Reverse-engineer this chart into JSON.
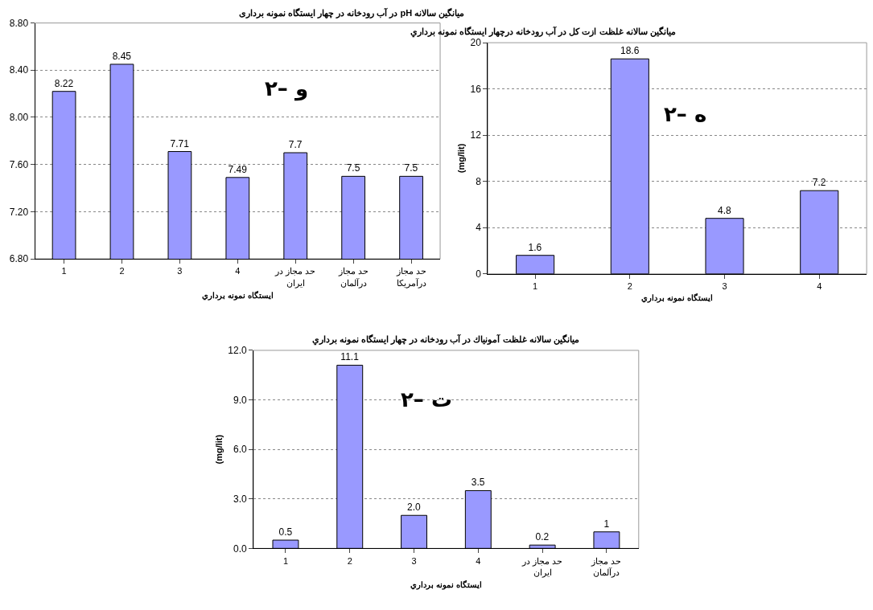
{
  "chart_data": [
    {
      "type": "bar",
      "title": "میانگین سالانه pH در آب رودخانه در چهار ایستگاه نمونه برداری",
      "xlabel": "ايستگاه نمونه برداري",
      "categories": [
        "1",
        "2",
        "3",
        "4",
        "حد مجاز در\nایران",
        "حد مجاز\nدرآلمان",
        "حد مجاز\nدرآمریکا"
      ],
      "values": [
        8.22,
        8.45,
        7.71,
        7.49,
        7.7,
        7.5,
        7.5
      ],
      "color": "#9999ff",
      "ylim": [
        6.8,
        8.8
      ],
      "yticks": [
        {
          "value": 6.8,
          "label": "6.80"
        },
        {
          "value": 7.2,
          "label": "7.20"
        },
        {
          "value": 7.6,
          "label": "7.60"
        },
        {
          "value": 8.0,
          "label": "8.00"
        },
        {
          "value": 8.4,
          "label": "8.40"
        },
        {
          "value": 8.8,
          "label": "8.80"
        }
      ],
      "grid": "y",
      "data_labels": true,
      "annotations": [
        "۲– و"
      ]
    },
    {
      "type": "bar",
      "title": "ميانگين سالانه غلظت ازت كل در آب رودخانه درچهار ايستگاه نمونه برداري",
      "xlabel": "ايستگاه نمونه برداري",
      "ylabel": "(mg/lit)",
      "categories": [
        "1",
        "2",
        "3",
        "4"
      ],
      "values": [
        1.6,
        18.6,
        4.8,
        7.2
      ],
      "color": "#9999ff",
      "ylim": [
        0,
        20
      ],
      "yticks": [
        0,
        4,
        8,
        12,
        16,
        20
      ],
      "grid": "y",
      "data_labels": true,
      "annotations": [
        "۲– ه"
      ]
    },
    {
      "type": "bar",
      "title": "ميانگين سالانه غلظت آمونياك در آب رودخانه در چهار ايستگاه نمونه برداري",
      "xlabel": "ايستگاه نمونه برداري",
      "ylabel": "(mg/lit)",
      "categories": [
        "1",
        "2",
        "3",
        "4",
        "حد مجاز در\nایران",
        "حد مجاز\nدرآلمان"
      ],
      "values": [
        0.5,
        11.1,
        2.0,
        3.5,
        0.2,
        1
      ],
      "value_labels": [
        "0.5",
        "11.1",
        "2.0",
        "3.5",
        "0.2",
        "1"
      ],
      "color": "#9999ff",
      "ylim": [
        0,
        12
      ],
      "yticks": [
        {
          "value": 0,
          "label": "0.0"
        },
        {
          "value": 3,
          "label": "3.0"
        },
        {
          "value": 6,
          "label": "6.0"
        },
        {
          "value": 9,
          "label": "9.0"
        },
        {
          "value": 12,
          "label": "12.0"
        }
      ],
      "grid": "y",
      "annotations": [
        "۲– ت"
      ]
    }
  ]
}
